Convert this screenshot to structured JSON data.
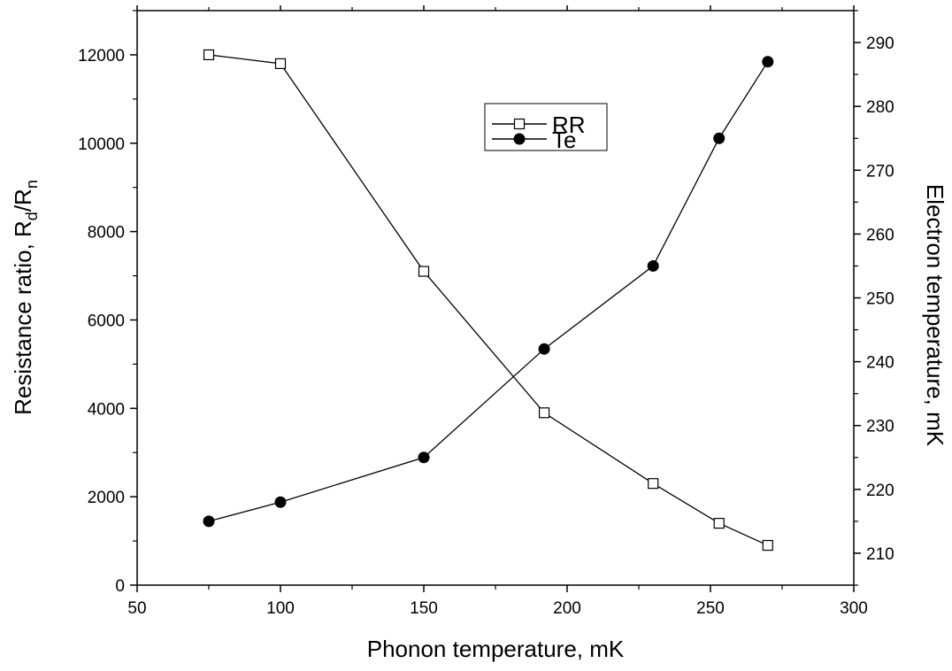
{
  "chart_data": {
    "type": "line",
    "title": "",
    "x": [
      75,
      100,
      150,
      192,
      230,
      253,
      270
    ],
    "xlabel": "Phonon temperature, mK",
    "xlim": [
      50,
      300
    ],
    "xticks": [
      50,
      100,
      150,
      200,
      250,
      300
    ],
    "ylabel_left": {
      "main": "Resistance ratio, R",
      "sub1": "d",
      "mid": "/R",
      "sub2": "n"
    },
    "ylim_left": [
      0,
      13000
    ],
    "yticks_left": [
      0,
      2000,
      4000,
      6000,
      8000,
      10000,
      12000
    ],
    "ylabel_right": "Electron temperature, mK",
    "ylim_right": [
      205,
      295
    ],
    "yticks_right": [
      210,
      220,
      230,
      240,
      250,
      260,
      270,
      280,
      290
    ],
    "series": [
      {
        "name": "RR",
        "axis": "left",
        "marker": "open-square",
        "values": [
          12000,
          11800,
          7100,
          3900,
          2300,
          1400,
          900
        ]
      },
      {
        "name": "Te",
        "axis": "right",
        "marker": "filled-circle",
        "values": [
          215,
          218,
          225,
          242,
          255,
          275,
          287
        ]
      }
    ],
    "grid": false,
    "legend_position": "top-right-inside"
  }
}
